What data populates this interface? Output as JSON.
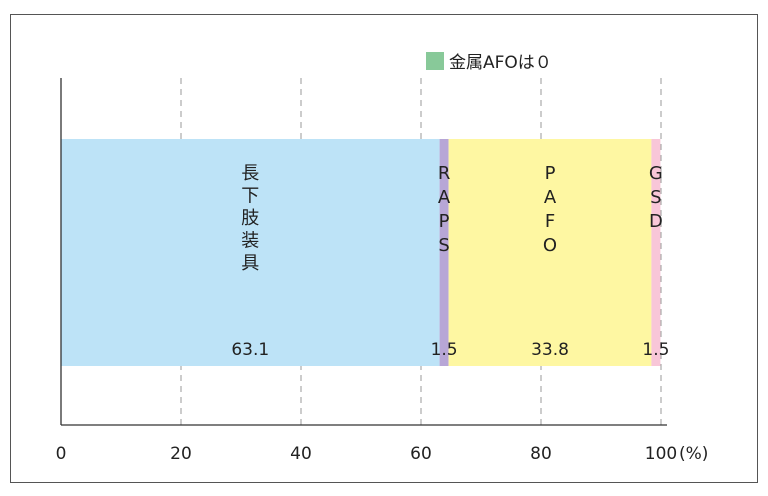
{
  "chart_data": {
    "type": "bar",
    "orientation": "horizontal",
    "stacked": true,
    "xlim": [
      0,
      100
    ],
    "xticks": [
      0,
      20,
      40,
      60,
      80,
      100
    ],
    "unit": "(%)",
    "grid": true,
    "legend": {
      "label": "金属AFOは０",
      "color": "#88c999",
      "placement": "top-right"
    },
    "series": [
      {
        "name": "長下肢装具",
        "label": "長\n下\n肢\n装\n具",
        "value": 63.1,
        "value_label": "63.1",
        "color": "#bde3f7"
      },
      {
        "name": "RAPS",
        "label": "R\nA\nP\nS",
        "value": 1.5,
        "value_label": "1.5",
        "color": "#b7a6d6"
      },
      {
        "name": "PAFO",
        "label": "P\nA\nF\nO",
        "value": 33.8,
        "value_label": "33.8",
        "color": "#fef7a2"
      },
      {
        "name": "GSD",
        "label": "G\nS\nD",
        "value": 1.5,
        "value_label": "1.5",
        "color": "#f8c6d8"
      }
    ]
  }
}
